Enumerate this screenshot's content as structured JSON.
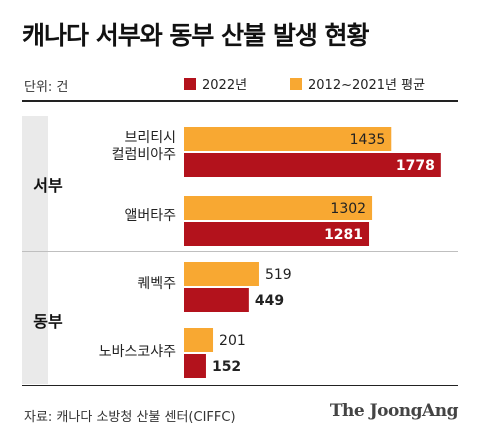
{
  "chart_data": {
    "type": "bar",
    "orientation": "horizontal",
    "title": "캐나다 서부와 동부 산불 발생 현황",
    "unit": "단위: 건",
    "groups": [
      {
        "name": "서부",
        "categories": [
          "브리티시 컬럼비아주",
          "앨버타주"
        ]
      },
      {
        "name": "동부",
        "categories": [
          "퀘벡주",
          "노바스코샤주"
        ]
      }
    ],
    "categories": [
      {
        "lines": [
          "브리티시",
          "컬럼비아주"
        ]
      },
      {
        "lines": [
          "앨버타주"
        ]
      },
      {
        "lines": [
          "퀘벡주"
        ]
      },
      {
        "lines": [
          "노바스코샤주"
        ]
      }
    ],
    "series": [
      {
        "name": "2012~2021년 평균",
        "color": "#f8a832",
        "values": [
          1435,
          1302,
          519,
          201
        ]
      },
      {
        "name": "2022년",
        "color": "#b3121c",
        "values": [
          1778,
          1281,
          449,
          152
        ]
      }
    ],
    "xlim": [
      0,
      1800
    ],
    "grid": false,
    "legend": "top"
  },
  "source": "자료: 캐나다 소방청 산불 센터(CIFFC)",
  "brand": "The JoongAng"
}
